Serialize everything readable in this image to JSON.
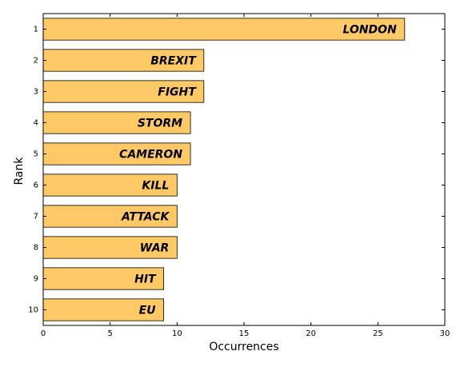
{
  "chart_data": {
    "type": "barh",
    "categories": [
      "1",
      "2",
      "3",
      "4",
      "5",
      "6",
      "7",
      "8",
      "9",
      "10"
    ],
    "bar_labels": [
      "LONDON",
      "BREXIT",
      "FIGHT",
      "STORM",
      "CAMERON",
      "KILL",
      "ATTACK",
      "WAR",
      "HIT",
      "EU"
    ],
    "values": [
      27,
      12,
      12,
      11,
      11,
      10,
      10,
      10,
      9,
      9
    ],
    "color": "#ffc966",
    "xlim": [
      0,
      30
    ],
    "xticks": [
      0,
      5,
      10,
      15,
      20,
      25,
      30
    ],
    "xlabel": "Occurrences",
    "ylabel": "Rank"
  }
}
